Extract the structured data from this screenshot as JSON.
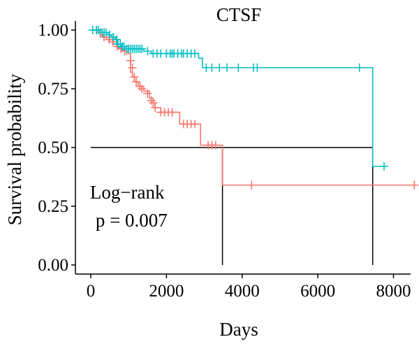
{
  "chart_data": {
    "type": "line",
    "subtype": "kaplan-meier",
    "title": "CTSF",
    "xlabel": "Days",
    "ylabel": "Survival probability",
    "xlim": [
      0,
      8600
    ],
    "ylim": [
      0,
      1
    ],
    "xticks": [
      0,
      2000,
      4000,
      6000,
      8000
    ],
    "xtick_labels": [
      "0",
      "2000",
      "4000",
      "6000",
      "8000"
    ],
    "yticks": [
      0,
      0.25,
      0.5,
      0.75,
      1.0
    ],
    "ytick_labels": [
      "0.00",
      "0.25",
      "0.50",
      "0.75",
      "1.00"
    ],
    "grid": false,
    "legend": "none",
    "annotation": {
      "line1": "Log−rank",
      "line2": "p = 0.007",
      "x": 200,
      "y1": 0.31,
      "y2": 0.19
    },
    "median_line": {
      "y": 0.5,
      "x_start": 0,
      "x_end": 7450,
      "drops": [
        3480,
        7450
      ],
      "color": "#000000"
    },
    "series": [
      {
        "color": "#F8766D",
        "steps": [
          [
            0,
            1.0
          ],
          [
            150,
            0.99
          ],
          [
            250,
            0.98
          ],
          [
            320,
            0.97
          ],
          [
            420,
            0.96
          ],
          [
            500,
            0.95
          ],
          [
            600,
            0.94
          ],
          [
            680,
            0.93
          ],
          [
            750,
            0.92
          ],
          [
            850,
            0.91
          ],
          [
            950,
            0.9
          ],
          [
            1050,
            0.82
          ],
          [
            1100,
            0.8
          ],
          [
            1150,
            0.78
          ],
          [
            1250,
            0.76
          ],
          [
            1400,
            0.74
          ],
          [
            1550,
            0.71
          ],
          [
            1650,
            0.69
          ],
          [
            1700,
            0.67
          ],
          [
            1850,
            0.65
          ],
          [
            2350,
            0.6
          ],
          [
            2900,
            0.51
          ],
          [
            3480,
            0.34
          ]
        ],
        "x_end": 8600,
        "censors": [
          [
            150,
            1.0
          ],
          [
            250,
            0.99
          ],
          [
            350,
            0.97
          ],
          [
            480,
            0.96
          ],
          [
            580,
            0.95
          ],
          [
            700,
            0.93
          ],
          [
            800,
            0.92
          ],
          [
            900,
            0.91
          ],
          [
            1050,
            0.87
          ],
          [
            1100,
            0.84
          ],
          [
            1150,
            0.8
          ],
          [
            1200,
            0.78
          ],
          [
            1300,
            0.76
          ],
          [
            1350,
            0.75
          ],
          [
            1500,
            0.73
          ],
          [
            1600,
            0.7
          ],
          [
            1650,
            0.69
          ],
          [
            1700,
            0.67
          ],
          [
            1850,
            0.65
          ],
          [
            1950,
            0.65
          ],
          [
            2050,
            0.65
          ],
          [
            2150,
            0.65
          ],
          [
            2450,
            0.6
          ],
          [
            2550,
            0.6
          ],
          [
            2650,
            0.6
          ],
          [
            2750,
            0.6
          ],
          [
            3100,
            0.51
          ],
          [
            3200,
            0.51
          ],
          [
            3300,
            0.51
          ],
          [
            4250,
            0.34
          ],
          [
            8550,
            0.34
          ]
        ]
      },
      {
        "color": "#00BFC4",
        "steps": [
          [
            0,
            1.0
          ],
          [
            250,
            0.99
          ],
          [
            450,
            0.98
          ],
          [
            550,
            0.97
          ],
          [
            650,
            0.96
          ],
          [
            700,
            0.94
          ],
          [
            800,
            0.93
          ],
          [
            900,
            0.92
          ],
          [
            1400,
            0.91
          ],
          [
            1600,
            0.9
          ],
          [
            2850,
            0.88
          ],
          [
            2950,
            0.84
          ],
          [
            7450,
            0.42
          ]
        ],
        "x_end": 7800,
        "censors": [
          [
            50,
            1.0
          ],
          [
            150,
            1.0
          ],
          [
            200,
            1.0
          ],
          [
            300,
            0.99
          ],
          [
            350,
            0.99
          ],
          [
            400,
            0.99
          ],
          [
            500,
            0.98
          ],
          [
            600,
            0.97
          ],
          [
            680,
            0.96
          ],
          [
            720,
            0.94
          ],
          [
            780,
            0.94
          ],
          [
            830,
            0.93
          ],
          [
            880,
            0.93
          ],
          [
            950,
            0.92
          ],
          [
            1000,
            0.92
          ],
          [
            1050,
            0.92
          ],
          [
            1100,
            0.92
          ],
          [
            1150,
            0.92
          ],
          [
            1200,
            0.92
          ],
          [
            1250,
            0.92
          ],
          [
            1300,
            0.92
          ],
          [
            1350,
            0.92
          ],
          [
            1500,
            0.91
          ],
          [
            1650,
            0.9
          ],
          [
            1750,
            0.9
          ],
          [
            1850,
            0.9
          ],
          [
            2000,
            0.9
          ],
          [
            2100,
            0.9
          ],
          [
            2150,
            0.9
          ],
          [
            2200,
            0.9
          ],
          [
            2300,
            0.9
          ],
          [
            2400,
            0.9
          ],
          [
            2450,
            0.9
          ],
          [
            2550,
            0.9
          ],
          [
            2650,
            0.9
          ],
          [
            2750,
            0.9
          ],
          [
            3050,
            0.84
          ],
          [
            3200,
            0.84
          ],
          [
            3400,
            0.84
          ],
          [
            3600,
            0.84
          ],
          [
            3900,
            0.84
          ],
          [
            4300,
            0.84
          ],
          [
            4400,
            0.84
          ],
          [
            7100,
            0.84
          ],
          [
            7750,
            0.42
          ]
        ]
      }
    ]
  }
}
